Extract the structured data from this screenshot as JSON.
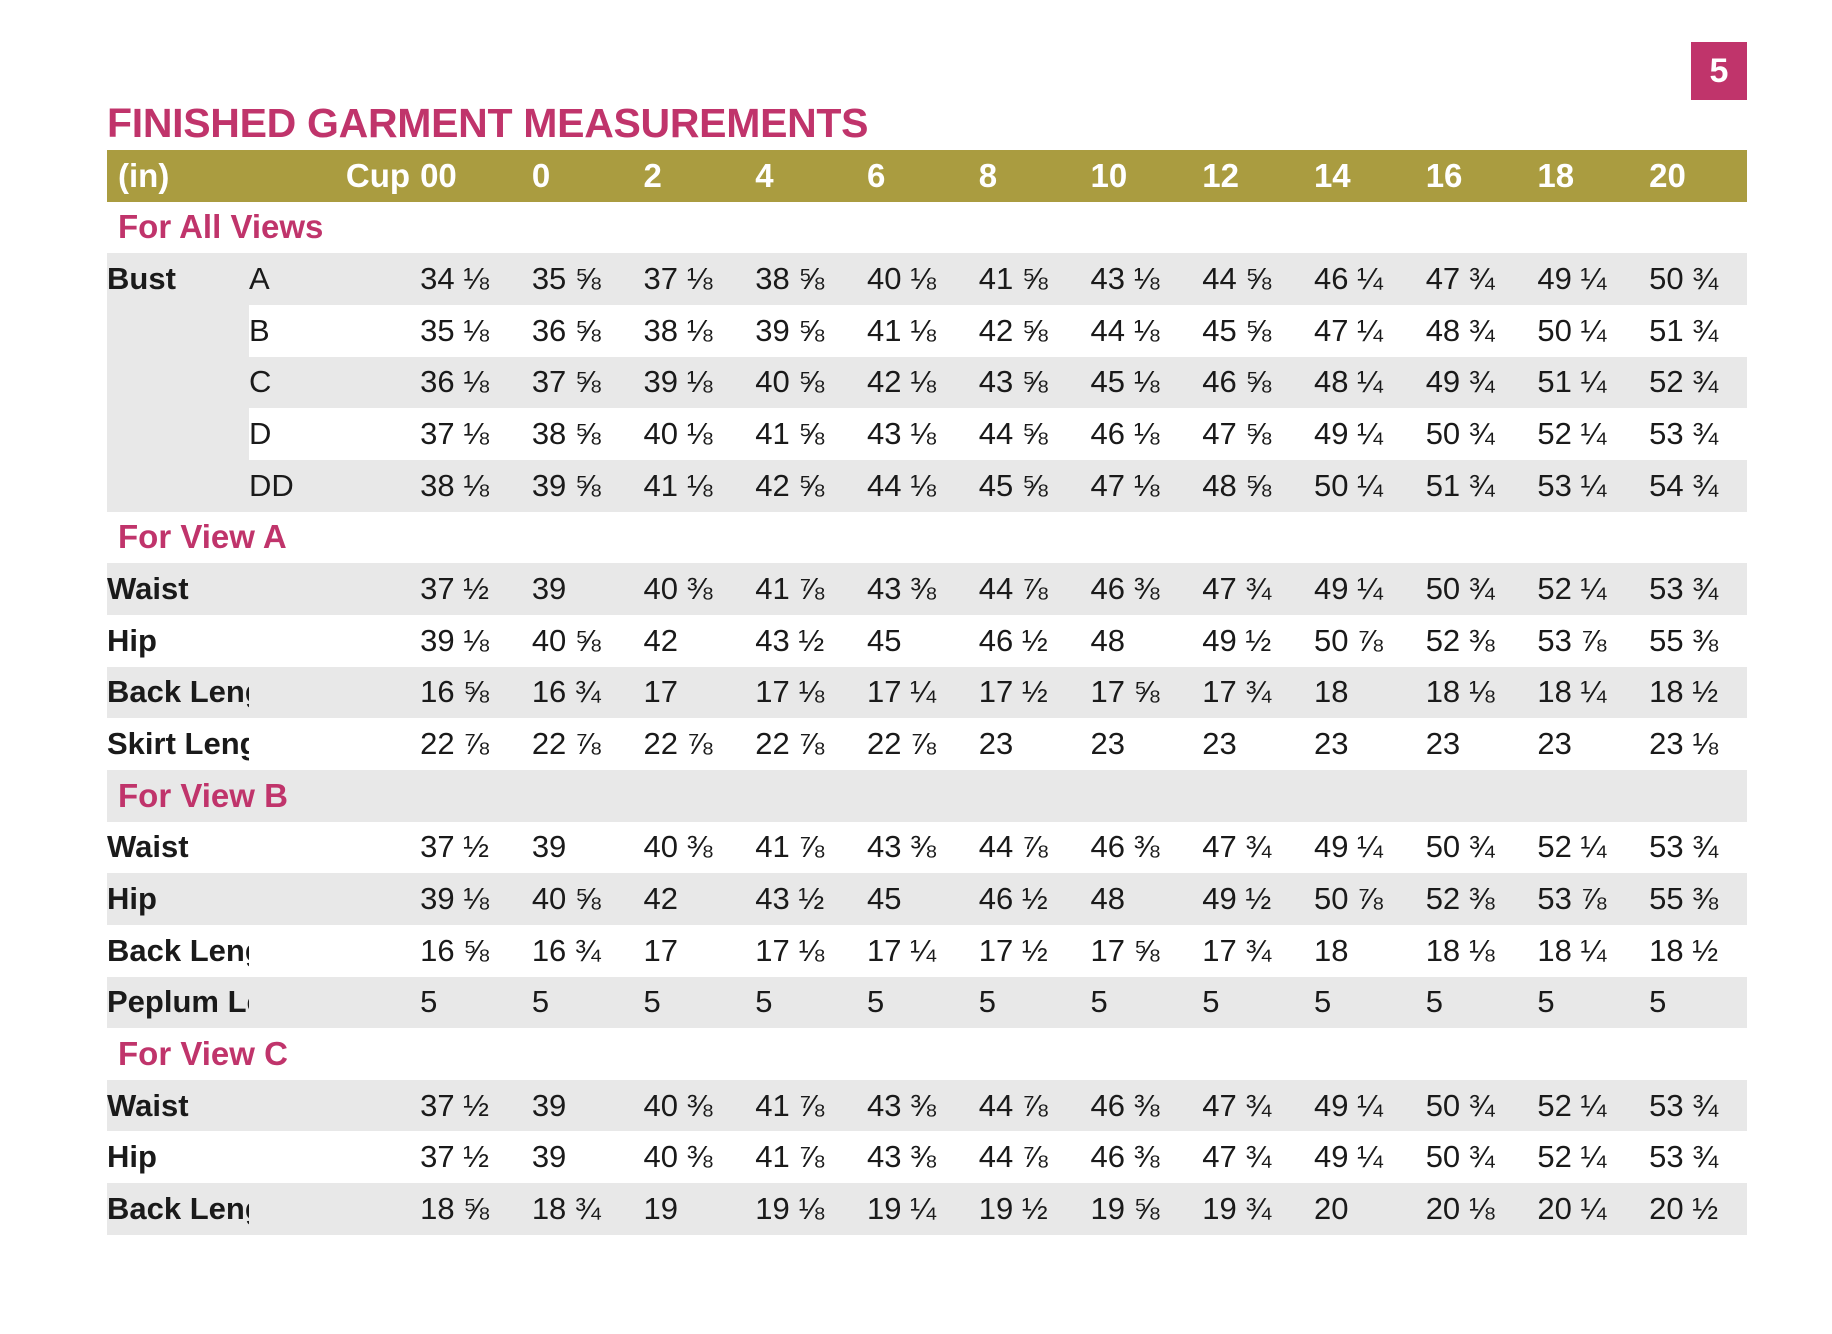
{
  "page_number": "5",
  "title": "FINISHED GARMENT MEASUREMENTS",
  "header": {
    "unit": "(in)",
    "cup": "Cup",
    "sizes": [
      "00",
      "0",
      "2",
      "4",
      "6",
      "8",
      "10",
      "12",
      "14",
      "16",
      "18",
      "20"
    ]
  },
  "sections": [
    {
      "title": "For All Views",
      "rows": [
        {
          "name": "Bust",
          "cup": "A",
          "values": [
            "34 ⅛",
            "35 ⅝",
            "37 ⅛",
            "38 ⅝",
            "40 ⅛",
            "41 ⅝",
            "43 ⅛",
            "44 ⅝",
            "46 ¼",
            "47 ¾",
            "49 ¼",
            "50 ¾"
          ]
        },
        {
          "name": "",
          "cup": "B",
          "values": [
            "35 ⅛",
            "36 ⅝",
            "38 ⅛",
            "39 ⅝",
            "41 ⅛",
            "42 ⅝",
            "44 ⅛",
            "45 ⅝",
            "47 ¼",
            "48 ¾",
            "50 ¼",
            "51 ¾"
          ]
        },
        {
          "name": "",
          "cup": "C",
          "values": [
            "36 ⅛",
            "37 ⅝",
            "39 ⅛",
            "40 ⅝",
            "42 ⅛",
            "43 ⅝",
            "45 ⅛",
            "46 ⅝",
            "48 ¼",
            "49 ¾",
            "51 ¼",
            "52 ¾"
          ]
        },
        {
          "name": "",
          "cup": "D",
          "values": [
            "37 ⅛",
            "38 ⅝",
            "40 ⅛",
            "41 ⅝",
            "43 ⅛",
            "44 ⅝",
            "46 ⅛",
            "47 ⅝",
            "49 ¼",
            "50 ¾",
            "52 ¼",
            "53 ¾"
          ]
        },
        {
          "name": "",
          "cup": "DD",
          "values": [
            "38 ⅛",
            "39 ⅝",
            "41 ⅛",
            "42 ⅝",
            "44 ⅛",
            "45 ⅝",
            "47 ⅛",
            "48 ⅝",
            "50 ¼",
            "51 ¾",
            "53 ¼",
            "54 ¾"
          ]
        }
      ]
    },
    {
      "title": "For View A",
      "rows": [
        {
          "name": "Waist",
          "cup": "",
          "values": [
            "37 ½",
            "39",
            "40 ⅜",
            "41 ⅞",
            "43 ⅜",
            "44 ⅞",
            "46 ⅜",
            "47 ¾",
            "49 ¼",
            "50 ¾",
            "52 ¼",
            "53 ¾"
          ]
        },
        {
          "name": "Hip",
          "cup": "",
          "values": [
            "39 ⅛",
            "40 ⅝",
            "42",
            "43 ½",
            "45",
            "46 ½",
            "48",
            "49 ½",
            "50 ⅞",
            "52 ⅜",
            "53 ⅞",
            "55 ⅜"
          ]
        },
        {
          "name": "Back Length",
          "cup": "",
          "values": [
            "16 ⅝",
            "16 ¾",
            "17",
            "17 ⅛",
            "17 ¼",
            "17 ½",
            "17 ⅝",
            "17 ¾",
            "18",
            "18 ⅛",
            "18 ¼",
            "18 ½"
          ]
        },
        {
          "name": "Skirt Length",
          "cup": "",
          "values": [
            "22 ⅞",
            "22 ⅞",
            "22 ⅞",
            "22 ⅞",
            "22 ⅞",
            "23",
            "23",
            "23",
            "23",
            "23",
            "23",
            "23 ⅛"
          ]
        }
      ]
    },
    {
      "title": "For View B",
      "rows": [
        {
          "name": "Waist",
          "cup": "",
          "values": [
            "37 ½",
            "39",
            "40 ⅜",
            "41 ⅞",
            "43 ⅜",
            "44 ⅞",
            "46 ⅜",
            "47 ¾",
            "49 ¼",
            "50 ¾",
            "52 ¼",
            "53 ¾"
          ]
        },
        {
          "name": "Hip",
          "cup": "",
          "values": [
            "39 ⅛",
            "40 ⅝",
            "42",
            "43 ½",
            "45",
            "46 ½",
            "48",
            "49 ½",
            "50 ⅞",
            "52 ⅜",
            "53 ⅞",
            "55 ⅜"
          ]
        },
        {
          "name": "Back Length",
          "cup": "",
          "values": [
            "16 ⅝",
            "16 ¾",
            "17",
            "17 ⅛",
            "17 ¼",
            "17 ½",
            "17 ⅝",
            "17 ¾",
            "18",
            "18 ⅛",
            "18 ¼",
            "18 ½"
          ]
        },
        {
          "name": "Peplum Length",
          "cup": "",
          "values": [
            "5",
            "5",
            "5",
            "5",
            "5",
            "5",
            "5",
            "5",
            "5",
            "5",
            "5",
            "5"
          ]
        }
      ]
    },
    {
      "title": "For View C",
      "rows": [
        {
          "name": "Waist",
          "cup": "",
          "values": [
            "37 ½",
            "39",
            "40 ⅜",
            "41 ⅞",
            "43 ⅜",
            "44 ⅞",
            "46 ⅜",
            "47 ¾",
            "49 ¼",
            "50 ¾",
            "52 ¼",
            "53 ¾"
          ]
        },
        {
          "name": "Hip",
          "cup": "",
          "values": [
            "37 ½",
            "39",
            "40 ⅜",
            "41 ⅞",
            "43 ⅜",
            "44 ⅞",
            "46 ⅜",
            "47 ¾",
            "49 ¼",
            "50 ¾",
            "52 ¼",
            "53 ¾"
          ]
        },
        {
          "name": "Back Length",
          "cup": "",
          "values": [
            "18 ⅝",
            "18 ¾",
            "19",
            "19 ⅛",
            "19 ¼",
            "19 ½",
            "19 ⅝",
            "19 ¾",
            "20",
            "20 ⅛",
            "20 ¼",
            "20 ½"
          ]
        }
      ]
    }
  ]
}
